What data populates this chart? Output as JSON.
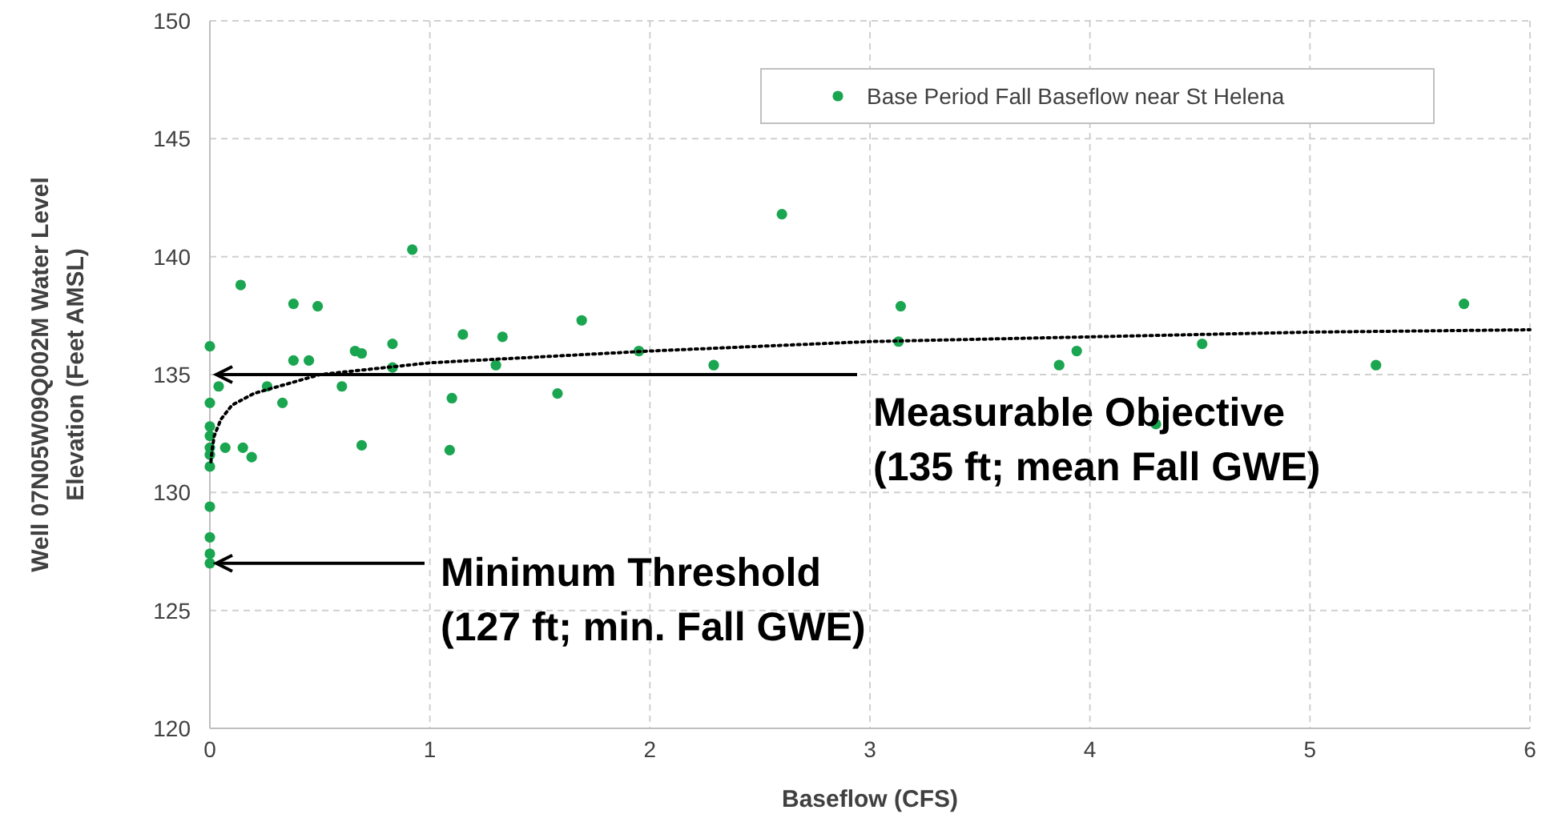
{
  "chart_data": {
    "type": "scatter",
    "xlabel": "Baseflow (CFS)",
    "ylabel": "Well 07N05W09Q002M Water Level\nElevation (Feet AMSL)",
    "xlim": [
      0,
      6
    ],
    "xticks": [
      0,
      1,
      2,
      3,
      4,
      5,
      6
    ],
    "ylim": [
      120,
      150
    ],
    "yticks": [
      120,
      125,
      130,
      135,
      140,
      145,
      150
    ],
    "grid": true,
    "legend": "top right",
    "marker": "circle",
    "series": [
      {
        "name": "Base Period Fall Baseflow near St Helena",
        "color": "#1aa550",
        "x": [
          0,
          0.14,
          0.92,
          0.38,
          0.49,
          0.38,
          0.45,
          0.66,
          0.69,
          0.83,
          0.83,
          1.15,
          1.33,
          1.3,
          1.69,
          1.95,
          1.58,
          1.1,
          1.09,
          0.69,
          0.6,
          0.26,
          0.33,
          0.07,
          0.15,
          0.19,
          0.04,
          0,
          0,
          0,
          0,
          0,
          0,
          0,
          0,
          0,
          0,
          2.6,
          2.29,
          3.14,
          3.13,
          3.86,
          3.94,
          4.3,
          4.51,
          5.3,
          5.7
        ],
        "values": [
          136.2,
          138.8,
          140.3,
          138,
          137.9,
          135.6,
          135.6,
          136,
          135.9,
          136.3,
          135.3,
          136.7,
          136.6,
          135.4,
          137.3,
          136,
          134.2,
          134,
          131.8,
          132,
          134.5,
          134.5,
          133.8,
          131.9,
          131.9,
          131.5,
          134.5,
          133.8,
          132.8,
          132.4,
          131.9,
          131.6,
          131.1,
          129.4,
          128.1,
          127.4,
          127,
          141.8,
          135.4,
          137.9,
          136.4,
          135.4,
          136,
          132.9,
          136.3,
          135.4,
          138
        ]
      },
      {
        "type": "line",
        "color": "#000000",
        "line_style": "dotted",
        "marker": "none",
        "x": [
          0.005,
          0.01,
          0.02,
          0.05,
          0.1,
          0.2,
          0.5,
          1,
          2,
          3,
          4,
          5,
          6
        ],
        "values": [
          131.3,
          131.8,
          132.4,
          133.1,
          133.7,
          134.2,
          135,
          135.5,
          136,
          136.4,
          136.6,
          136.8,
          136.9
        ]
      }
    ],
    "ref_lines": [
      {
        "axis": "y",
        "value": 135,
        "label": "Measurable Objective\n(135 ft; mean Fall GWE)"
      },
      {
        "axis": "y",
        "value": 127,
        "label": "Minimum Threshold\n(127 ft; min. Fall GWE)"
      }
    ]
  }
}
